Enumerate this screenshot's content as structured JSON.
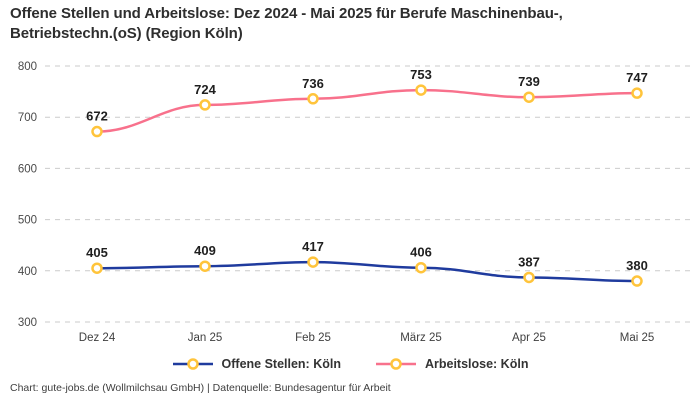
{
  "title": {
    "line1": "Offene Stellen und Arbeitslose: Dez 2024 - Mai 2025 für Berufe Maschinenbau-,",
    "line2": "Betriebstechn.(oS) (Region Köln)"
  },
  "chart_data": {
    "type": "line",
    "categories": [
      "Dez 24",
      "Jan 25",
      "Feb 25",
      "März 25",
      "Apr 25",
      "Mai 25"
    ],
    "series": [
      {
        "name": "Offene Stellen: Köln",
        "color": "#1F3B9E",
        "values": [
          405,
          409,
          417,
          406,
          387,
          380
        ]
      },
      {
        "name": "Arbeitslose: Köln",
        "color": "#F8718C",
        "values": [
          672,
          724,
          736,
          753,
          739,
          747
        ]
      }
    ],
    "marker": {
      "stroke": "#FFC43B",
      "fill": "#FFFFFF"
    },
    "yticks": [
      300,
      400,
      500,
      600,
      700,
      800
    ],
    "ylim": [
      300,
      800
    ],
    "grid": "horizontal-dashed",
    "grid_color": "#CBCBCB",
    "tick_label_color": "#4A4A4A",
    "value_label_color": "#1F1F1F",
    "legend_position": "bottom",
    "title": "Offene Stellen und Arbeitslose: Dez 2024 - Mai 2025 für Berufe Maschinenbau-, Betriebstechn.(oS) (Region Köln)"
  },
  "footer": {
    "text": "Chart: gute-jobs.de (Wollmilchsau GmbH) | Datenquelle: Bundesagentur für Arbeit"
  }
}
